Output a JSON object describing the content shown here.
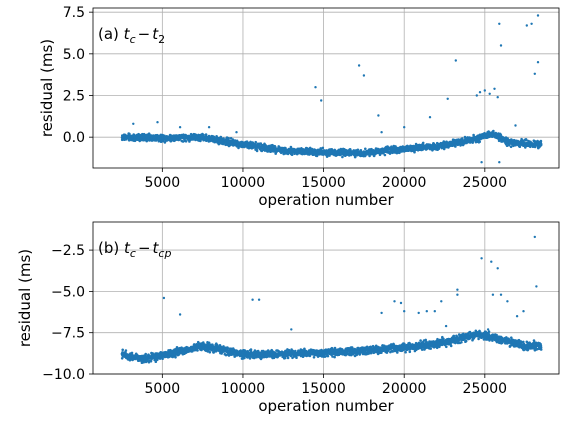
{
  "chart_data": [
    {
      "type": "scatter",
      "panel_label": "(a)",
      "title_math": {
        "base": "t",
        "sub1": "c",
        "op": "−",
        "sub2": "2"
      },
      "xlabel": "operation number",
      "ylabel": "residual (ms)",
      "xlim": [
        700,
        29600
      ],
      "ylim": [
        -1.85,
        7.75
      ],
      "xticks": [
        5000,
        10000,
        15000,
        20000,
        25000
      ],
      "yticks": [
        0.0,
        2.5,
        5.0,
        7.5
      ],
      "ytick_labels": [
        "0.0",
        "2.5",
        "5.0",
        "7.5"
      ],
      "grid": true,
      "marker_color": "#1f77b4",
      "x_range_dense": [
        2500,
        28500
      ],
      "baseline": [
        [
          2500,
          0.0
        ],
        [
          5000,
          -0.05
        ],
        [
          7500,
          0.0
        ],
        [
          10000,
          -0.45
        ],
        [
          12500,
          -0.8
        ],
        [
          15000,
          -0.9
        ],
        [
          17500,
          -0.95
        ],
        [
          20000,
          -0.7
        ],
        [
          22500,
          -0.5
        ],
        [
          24000,
          -0.2
        ],
        [
          25500,
          0.2
        ],
        [
          26500,
          -0.3
        ],
        [
          28500,
          -0.45
        ]
      ],
      "band_halfwidth": 0.3,
      "outliers": [
        [
          3200,
          0.8
        ],
        [
          4700,
          0.9
        ],
        [
          6100,
          0.6
        ],
        [
          7900,
          0.6
        ],
        [
          9600,
          0.3
        ],
        [
          14500,
          3.0
        ],
        [
          14850,
          2.2
        ],
        [
          17200,
          4.3
        ],
        [
          17500,
          3.7
        ],
        [
          18400,
          1.3
        ],
        [
          18600,
          0.3
        ],
        [
          20000,
          0.6
        ],
        [
          21600,
          1.2
        ],
        [
          22700,
          2.3
        ],
        [
          23200,
          4.6
        ],
        [
          24500,
          2.5
        ],
        [
          24700,
          2.7
        ],
        [
          25000,
          2.8
        ],
        [
          25300,
          2.6
        ],
        [
          25600,
          2.9
        ],
        [
          25800,
          2.4
        ],
        [
          24800,
          -1.5
        ],
        [
          25900,
          -1.5
        ],
        [
          25900,
          6.8
        ],
        [
          26000,
          5.5
        ],
        [
          27600,
          6.7
        ],
        [
          27900,
          6.8
        ],
        [
          28100,
          3.8
        ],
        [
          28300,
          4.5
        ],
        [
          28300,
          7.3
        ],
        [
          26900,
          0.7
        ]
      ]
    },
    {
      "type": "scatter",
      "panel_label": "(b)",
      "title_math": {
        "base": "t",
        "sub1": "c",
        "op": "−",
        "sub2": "cp"
      },
      "xlabel": "operation number",
      "ylabel": "residual (ms)",
      "xlim": [
        700,
        29600
      ],
      "ylim": [
        -10.0,
        -0.8
      ],
      "xticks": [
        5000,
        10000,
        15000,
        20000,
        25000
      ],
      "yticks": [
        -10.0,
        -7.5,
        -5.0,
        -2.5
      ],
      "ytick_labels": [
        "−10.0",
        "−7.5",
        "−5.0",
        "−2.5"
      ],
      "grid": true,
      "marker_color": "#1f77b4",
      "x_range_dense": [
        2500,
        28500
      ],
      "baseline": [
        [
          2500,
          -8.8
        ],
        [
          4000,
          -9.1
        ],
        [
          7500,
          -8.3
        ],
        [
          10000,
          -8.8
        ],
        [
          12500,
          -8.8
        ],
        [
          15000,
          -8.7
        ],
        [
          17500,
          -8.6
        ],
        [
          20000,
          -8.4
        ],
        [
          22500,
          -8.1
        ],
        [
          24500,
          -7.6
        ],
        [
          26000,
          -7.9
        ],
        [
          27500,
          -8.3
        ],
        [
          28500,
          -8.3
        ]
      ],
      "band_halfwidth": 0.35,
      "outliers": [
        [
          5100,
          -5.4
        ],
        [
          6100,
          -6.4
        ],
        [
          10600,
          -5.5
        ],
        [
          11000,
          -5.5
        ],
        [
          13000,
          -7.3
        ],
        [
          18600,
          -6.3
        ],
        [
          19400,
          -5.6
        ],
        [
          19800,
          -5.7
        ],
        [
          20000,
          -6.2
        ],
        [
          20900,
          -6.3
        ],
        [
          21400,
          -6.2
        ],
        [
          21900,
          -6.2
        ],
        [
          22300,
          -5.6
        ],
        [
          22600,
          -7.1
        ],
        [
          23300,
          -4.9
        ],
        [
          23300,
          -5.2
        ],
        [
          24800,
          -3.0
        ],
        [
          25400,
          -3.2
        ],
        [
          25500,
          -5.2
        ],
        [
          25800,
          -3.6
        ],
        [
          26000,
          -5.2
        ],
        [
          26400,
          -5.6
        ],
        [
          27000,
          -6.5
        ],
        [
          27400,
          -6.2
        ],
        [
          28100,
          -1.7
        ],
        [
          28200,
          -4.7
        ],
        [
          25200,
          -7.3
        ]
      ]
    }
  ]
}
